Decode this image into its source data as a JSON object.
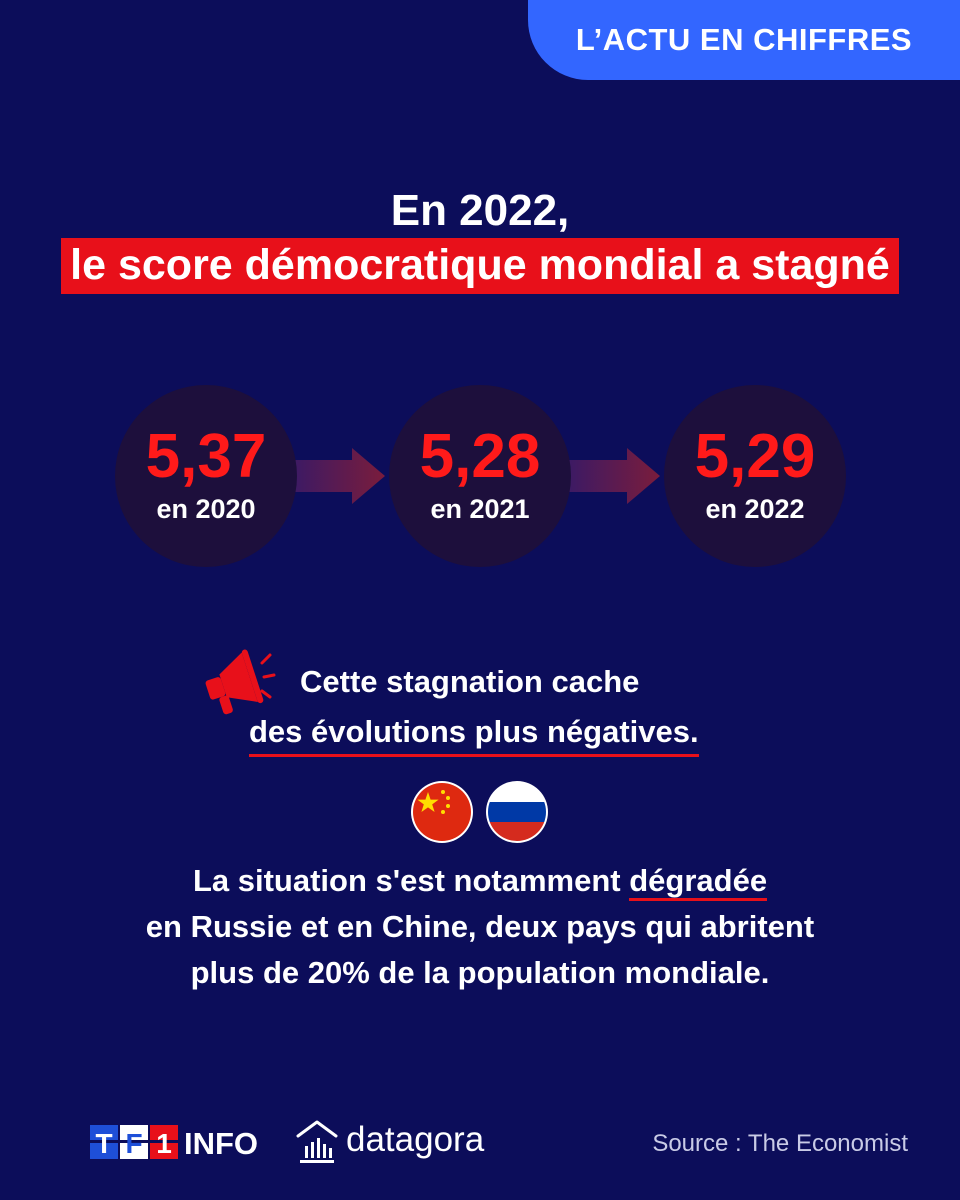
{
  "header": {
    "tag_label": "L’ACTU EN CHIFFRES"
  },
  "title": {
    "line1": "En 2022,",
    "line2": "le score démocratique mondial a stagné"
  },
  "scores": [
    {
      "value": "5,37",
      "year_label": "en 2020"
    },
    {
      "value": "5,28",
      "year_label": "en 2021"
    },
    {
      "value": "5,29",
      "year_label": "en 2022"
    }
  ],
  "stagnation": {
    "line1": "Cette stagnation cache",
    "line2": "des évolutions plus négatives."
  },
  "flags": [
    "china-flag-icon",
    "russia-flag-icon"
  ],
  "situation": {
    "line1_before": "La situation s'est notamment ",
    "line1_underlined": "dégradée",
    "line2": "en Russie et en Chine, deux pays qui abritent",
    "line3": "plus de 20% de la population mondiale."
  },
  "footer": {
    "brand_tf1": "TF1",
    "brand_info": "INFO",
    "partner": "datagora",
    "source": "Source : The Economist"
  },
  "colors": {
    "background": "#0c0d5a",
    "accent_red": "#e8101a",
    "tag_blue": "#3366ff",
    "circle_fill": "#1d0f3c"
  }
}
